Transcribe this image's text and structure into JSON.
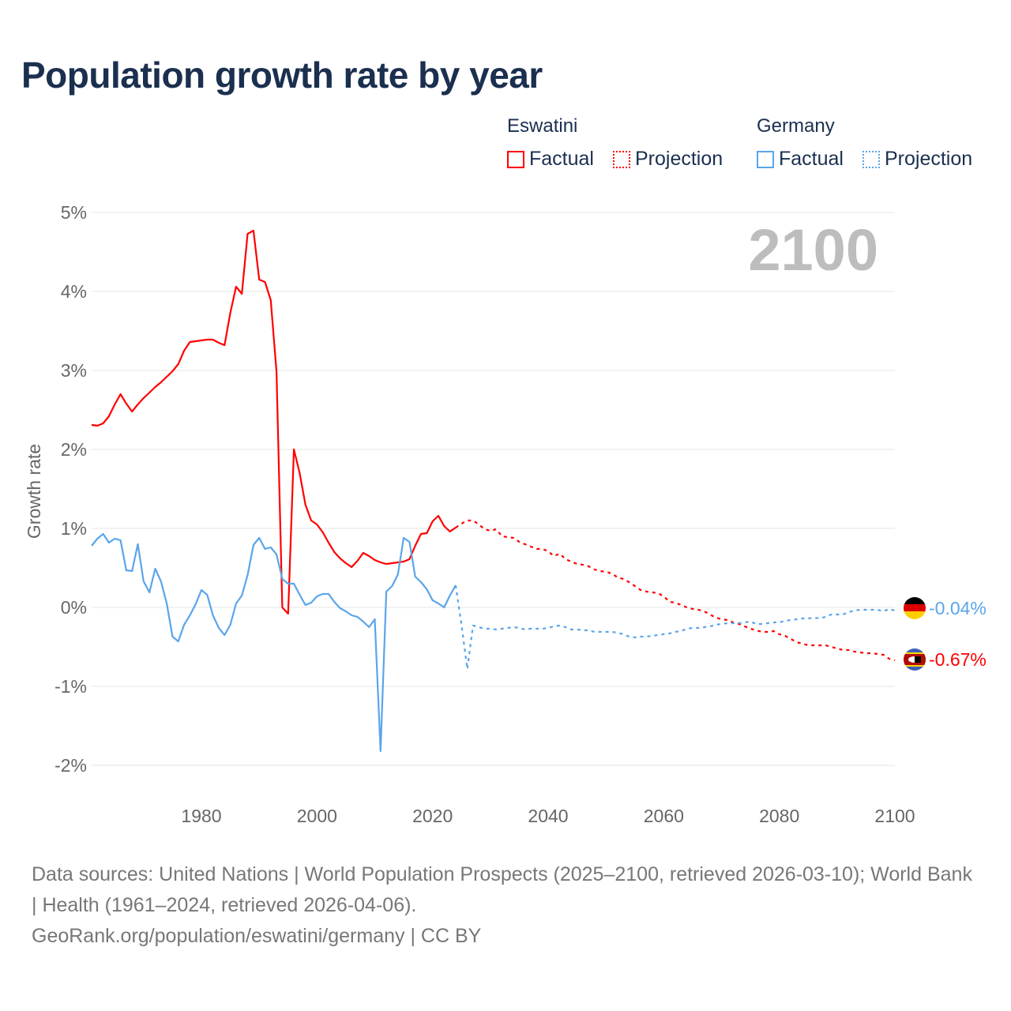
{
  "title": "Population growth rate by year",
  "legend": {
    "groups": [
      {
        "name": "Eswatini",
        "color": "#ff0000",
        "items": [
          "Factual",
          "Projection"
        ]
      },
      {
        "name": "Germany",
        "color": "#5aa5ea",
        "items": [
          "Factual",
          "Projection"
        ]
      }
    ]
  },
  "year_label": "2100",
  "end_labels": {
    "germany": "-0.04%",
    "eswatini": "-0.67%"
  },
  "footer": {
    "line1": "Data sources: United Nations | World Population Prospects (2025–2100, retrieved 2026-03-10); World Bank | Health (1961–2024, retrieved 2026-04-06).",
    "line2": "GeoRank.org/population/eswatini/germany | CC BY"
  },
  "chart_data": {
    "type": "line",
    "title": "Population growth rate by year",
    "xlabel": "",
    "ylabel": "Growth rate",
    "xlim": [
      1961,
      2100
    ],
    "ylim": [
      -2,
      5
    ],
    "xticks": [
      1980,
      2000,
      2020,
      2040,
      2060,
      2080,
      2100
    ],
    "yticks": [
      -2,
      -1,
      0,
      1,
      2,
      3,
      4,
      5
    ],
    "ytick_labels": [
      "-2%",
      "-1%",
      "0%",
      "1%",
      "2%",
      "3%",
      "4%",
      "5%"
    ],
    "grid": true,
    "series": [
      {
        "name": "Eswatini Factual",
        "color": "#ff0000",
        "dashed": false,
        "x_start": 1961,
        "values": [
          2.31,
          2.3,
          2.33,
          2.42,
          2.57,
          2.7,
          2.58,
          2.48,
          2.57,
          2.65,
          2.72,
          2.79,
          2.85,
          2.92,
          2.99,
          3.08,
          3.25,
          3.36,
          3.37,
          3.38,
          3.39,
          3.39,
          3.35,
          3.32,
          3.73,
          4.06,
          3.97,
          4.73,
          4.77,
          4.15,
          4.12,
          3.89,
          2.98,
          0.0,
          -0.08,
          2.0,
          1.7,
          1.3,
          1.1,
          1.05,
          0.95,
          0.82,
          0.7,
          0.62,
          0.56,
          0.51,
          0.59,
          0.69,
          0.65,
          0.6,
          0.57,
          0.55,
          0.56,
          0.57,
          0.58,
          0.61,
          0.78,
          0.93,
          0.94,
          1.09,
          1.16,
          1.03,
          0.96,
          1.01
        ]
      },
      {
        "name": "Eswatini Projection",
        "color": "#ff0000",
        "dashed": true,
        "x_start": 2024,
        "values": [
          1.01,
          1.06,
          1.1,
          1.1,
          1.05,
          0.99,
          0.97,
          0.99,
          0.9,
          0.89,
          0.88,
          0.83,
          0.8,
          0.77,
          0.74,
          0.74,
          0.71,
          0.65,
          0.68,
          0.61,
          0.58,
          0.55,
          0.54,
          0.52,
          0.48,
          0.46,
          0.45,
          0.43,
          0.38,
          0.36,
          0.32,
          0.27,
          0.22,
          0.2,
          0.19,
          0.18,
          0.14,
          0.07,
          0.06,
          0.03,
          0.0,
          -0.02,
          -0.03,
          -0.05,
          -0.09,
          -0.13,
          -0.15,
          -0.16,
          -0.19,
          -0.21,
          -0.24,
          -0.27,
          -0.29,
          -0.31,
          -0.31,
          -0.3,
          -0.34,
          -0.36,
          -0.4,
          -0.44,
          -0.46,
          -0.48,
          -0.48,
          -0.48,
          -0.48,
          -0.5,
          -0.52,
          -0.54,
          -0.54,
          -0.56,
          -0.57,
          -0.58,
          -0.58,
          -0.59,
          -0.6,
          -0.65,
          -0.67
        ]
      },
      {
        "name": "Germany Factual",
        "color": "#5aa5ea",
        "dashed": false,
        "x_start": 1961,
        "values": [
          0.78,
          0.87,
          0.93,
          0.82,
          0.87,
          0.85,
          0.47,
          0.46,
          0.8,
          0.33,
          0.19,
          0.49,
          0.33,
          0.05,
          -0.37,
          -0.43,
          -0.22,
          -0.1,
          0.04,
          0.22,
          0.16,
          -0.1,
          -0.26,
          -0.35,
          -0.22,
          0.05,
          0.15,
          0.41,
          0.79,
          0.88,
          0.74,
          0.76,
          0.67,
          0.36,
          0.3,
          0.3,
          0.16,
          0.03,
          0.06,
          0.14,
          0.17,
          0.17,
          0.07,
          -0.01,
          -0.05,
          -0.1,
          -0.12,
          -0.18,
          -0.25,
          -0.15,
          -1.82,
          0.2,
          0.27,
          0.42,
          0.88,
          0.83,
          0.39,
          0.32,
          0.23,
          0.09,
          0.05,
          0.0,
          0.15,
          0.28
        ]
      },
      {
        "name": "Germany Projection",
        "color": "#5aa5ea",
        "dashed": true,
        "x_start": 2024,
        "values": [
          0.28,
          -0.22,
          -0.78,
          -0.23,
          -0.25,
          -0.27,
          -0.27,
          -0.28,
          -0.27,
          -0.26,
          -0.25,
          -0.26,
          -0.28,
          -0.27,
          -0.27,
          -0.27,
          -0.26,
          -0.24,
          -0.23,
          -0.25,
          -0.28,
          -0.28,
          -0.29,
          -0.29,
          -0.31,
          -0.31,
          -0.31,
          -0.31,
          -0.32,
          -0.34,
          -0.37,
          -0.38,
          -0.37,
          -0.37,
          -0.36,
          -0.35,
          -0.34,
          -0.33,
          -0.31,
          -0.3,
          -0.27,
          -0.26,
          -0.26,
          -0.25,
          -0.24,
          -0.22,
          -0.21,
          -0.2,
          -0.2,
          -0.2,
          -0.19,
          -0.18,
          -0.21,
          -0.21,
          -0.2,
          -0.19,
          -0.19,
          -0.17,
          -0.16,
          -0.15,
          -0.14,
          -0.14,
          -0.13,
          -0.14,
          -0.12,
          -0.09,
          -0.09,
          -0.09,
          -0.06,
          -0.04,
          -0.03,
          -0.03,
          -0.03,
          -0.03,
          -0.05,
          -0.02,
          -0.04
        ]
      }
    ]
  }
}
